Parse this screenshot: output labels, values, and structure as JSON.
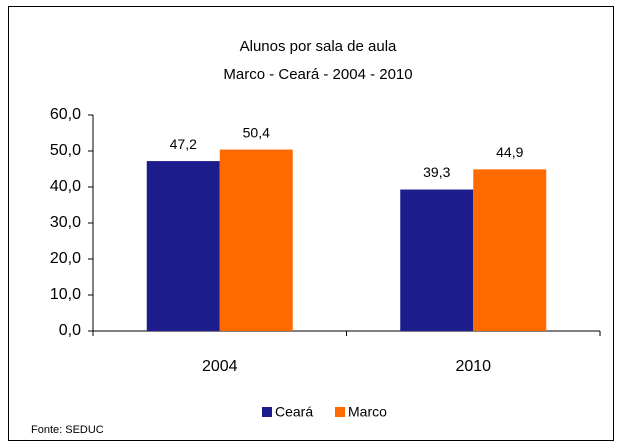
{
  "chart_data": {
    "type": "bar",
    "title": "Alunos por sala de aula",
    "subtitle": "Marco - Ceará - 2004 - 2010",
    "categories": [
      "2004",
      "2010"
    ],
    "series": [
      {
        "name": "Ceará",
        "color": "#1c1c8c",
        "values": [
          47.2,
          39.3
        ],
        "value_labels": [
          "47,2",
          "39,3"
        ]
      },
      {
        "name": "Marco",
        "color": "#ff6a00",
        "values": [
          50.4,
          44.9
        ],
        "value_labels": [
          "50,4",
          "44,9"
        ]
      }
    ],
    "ylim": [
      0,
      60
    ],
    "yticks": [
      {
        "value": 0,
        "label": "0,0"
      },
      {
        "value": 10,
        "label": "10,0"
      },
      {
        "value": 20,
        "label": "20,0"
      },
      {
        "value": 30,
        "label": "30,0"
      },
      {
        "value": 40,
        "label": "40,0"
      },
      {
        "value": 50,
        "label": "50,0"
      },
      {
        "value": 60,
        "label": "60,0"
      }
    ],
    "legend": "bottom",
    "source": "Fonte: SEDUC"
  }
}
